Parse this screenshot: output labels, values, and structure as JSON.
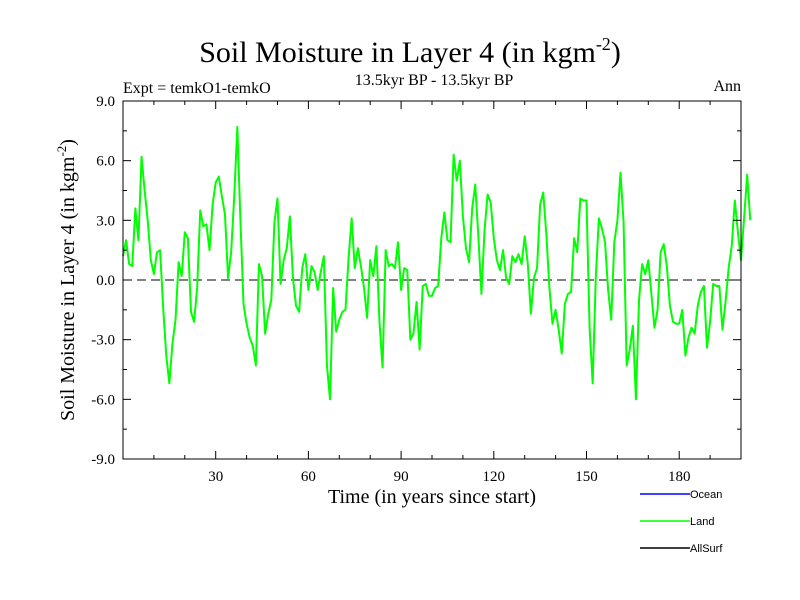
{
  "chart_data": {
    "type": "line",
    "title": "Soil Moisture in Layer 4 (in kgm",
    "title_sup": "-2",
    "title_close": ")",
    "subtitle_left": "Expt = temkO1-temkO",
    "subtitle_center": "13.5kyr BP - 13.5kyr BP",
    "subtitle_right": "Ann",
    "xlabel": "Time (in years since start)",
    "ylabel": "Soil Moisture in Layer 4 (in kgm",
    "ylabel_sup": "-2",
    "ylabel_close": ")",
    "xlim": [
      0,
      200
    ],
    "ylim": [
      -9,
      9
    ],
    "x_ticks": [
      30,
      60,
      90,
      120,
      150,
      180
    ],
    "x_tick_labels": [
      "30",
      "60",
      "90",
      "120",
      "150",
      "180"
    ],
    "y_ticks": [
      -9,
      -6,
      -3,
      0,
      3,
      6,
      9
    ],
    "y_tick_labels": [
      "-9.0",
      "-6.0",
      "-3.0",
      "0.0",
      "3.0",
      "6.0",
      "9.0"
    ],
    "zero_line": 0,
    "legend": [
      {
        "name": "Ocean",
        "color": "#0000ff"
      },
      {
        "name": "Land",
        "color": "#00ff00"
      },
      {
        "name": "AllSurf",
        "color": "#000000"
      }
    ],
    "series": [
      {
        "name": "Land",
        "color": "#00ff00",
        "x_start": 0,
        "x_step": 1,
        "values": [
          1.2,
          2.0,
          0.8,
          0.7,
          3.6,
          2.0,
          6.2,
          4.5,
          3.0,
          1.0,
          0.3,
          1.4,
          1.5,
          -1.4,
          -3.8,
          -5.2,
          -3.2,
          -2.0,
          0.9,
          0.2,
          2.4,
          2.1,
          -1.6,
          -2.1,
          -0.4,
          3.5,
          2.7,
          2.8,
          1.5,
          3.8,
          4.9,
          5.2,
          4.2,
          3.3,
          0.1,
          1.4,
          4.2,
          7.7,
          3.0,
          -1.2,
          -2.2,
          -2.9,
          -3.3,
          -4.3,
          0.8,
          0.2,
          -2.7,
          -1.7,
          -1.0,
          2.9,
          4.1,
          -0.2,
          1.0,
          1.6,
          3.2,
          0.1,
          -1.3,
          -1.6,
          0.6,
          1.3,
          -0.5,
          0.7,
          0.4,
          -0.5,
          0.4,
          1.2,
          -4.3,
          -6.0,
          -0.4,
          -2.6,
          -2.0,
          -1.6,
          -1.5,
          1.1,
          3.1,
          0.6,
          1.6,
          0.7,
          -0.4,
          -1.9,
          1.0,
          0.2,
          1.7,
          -2.1,
          -4.4,
          1.5,
          0.7,
          0.8,
          0.6,
          1.9,
          -0.5,
          0.6,
          0.5,
          -3.0,
          -2.7,
          -1.1,
          -3.5,
          -0.3,
          -0.2,
          -0.8,
          -0.8,
          -0.4,
          -0.3,
          2.1,
          3.4,
          2.0,
          1.9,
          6.3,
          5.0,
          6.0,
          3.2,
          1.6,
          0.9,
          3.6,
          4.8,
          2.2,
          -0.7,
          2.5,
          4.3,
          3.9,
          2.1,
          1.0,
          0.5,
          1.5,
          0.1,
          -0.2,
          1.2,
          0.9,
          1.3,
          0.8,
          2.2,
          0.8,
          -1.7,
          0.1,
          0.6,
          3.8,
          4.4,
          2.3,
          -0.4,
          -2.2,
          -1.5,
          -2.5,
          -3.7,
          -1.2,
          -0.7,
          -0.6,
          2.1,
          1.4,
          4.1,
          4.0,
          4.0,
          -2.4,
          -5.2,
          0.1,
          3.1,
          2.6,
          1.9,
          -0.5,
          -2.0,
          1.9,
          3.0,
          5.4,
          2.9,
          -4.3,
          -3.5,
          -2.3,
          -6.0,
          -1.0,
          0.8,
          0.3,
          1.0,
          -0.7,
          -2.4,
          -1.5,
          1.4,
          1.8,
          0.7,
          -1.3,
          -2.1,
          -2.2,
          -2.2,
          -1.5,
          -3.8,
          -2.9,
          -2.4,
          -2.7,
          -1.3,
          -0.6,
          -0.3,
          -3.4,
          -2.1,
          -0.2,
          -0.3,
          -0.3,
          -2.5,
          -1.1,
          0.6,
          1.7,
          4.0,
          2.4,
          1.0,
          3.1,
          5.3,
          3.0
        ]
      }
    ]
  }
}
